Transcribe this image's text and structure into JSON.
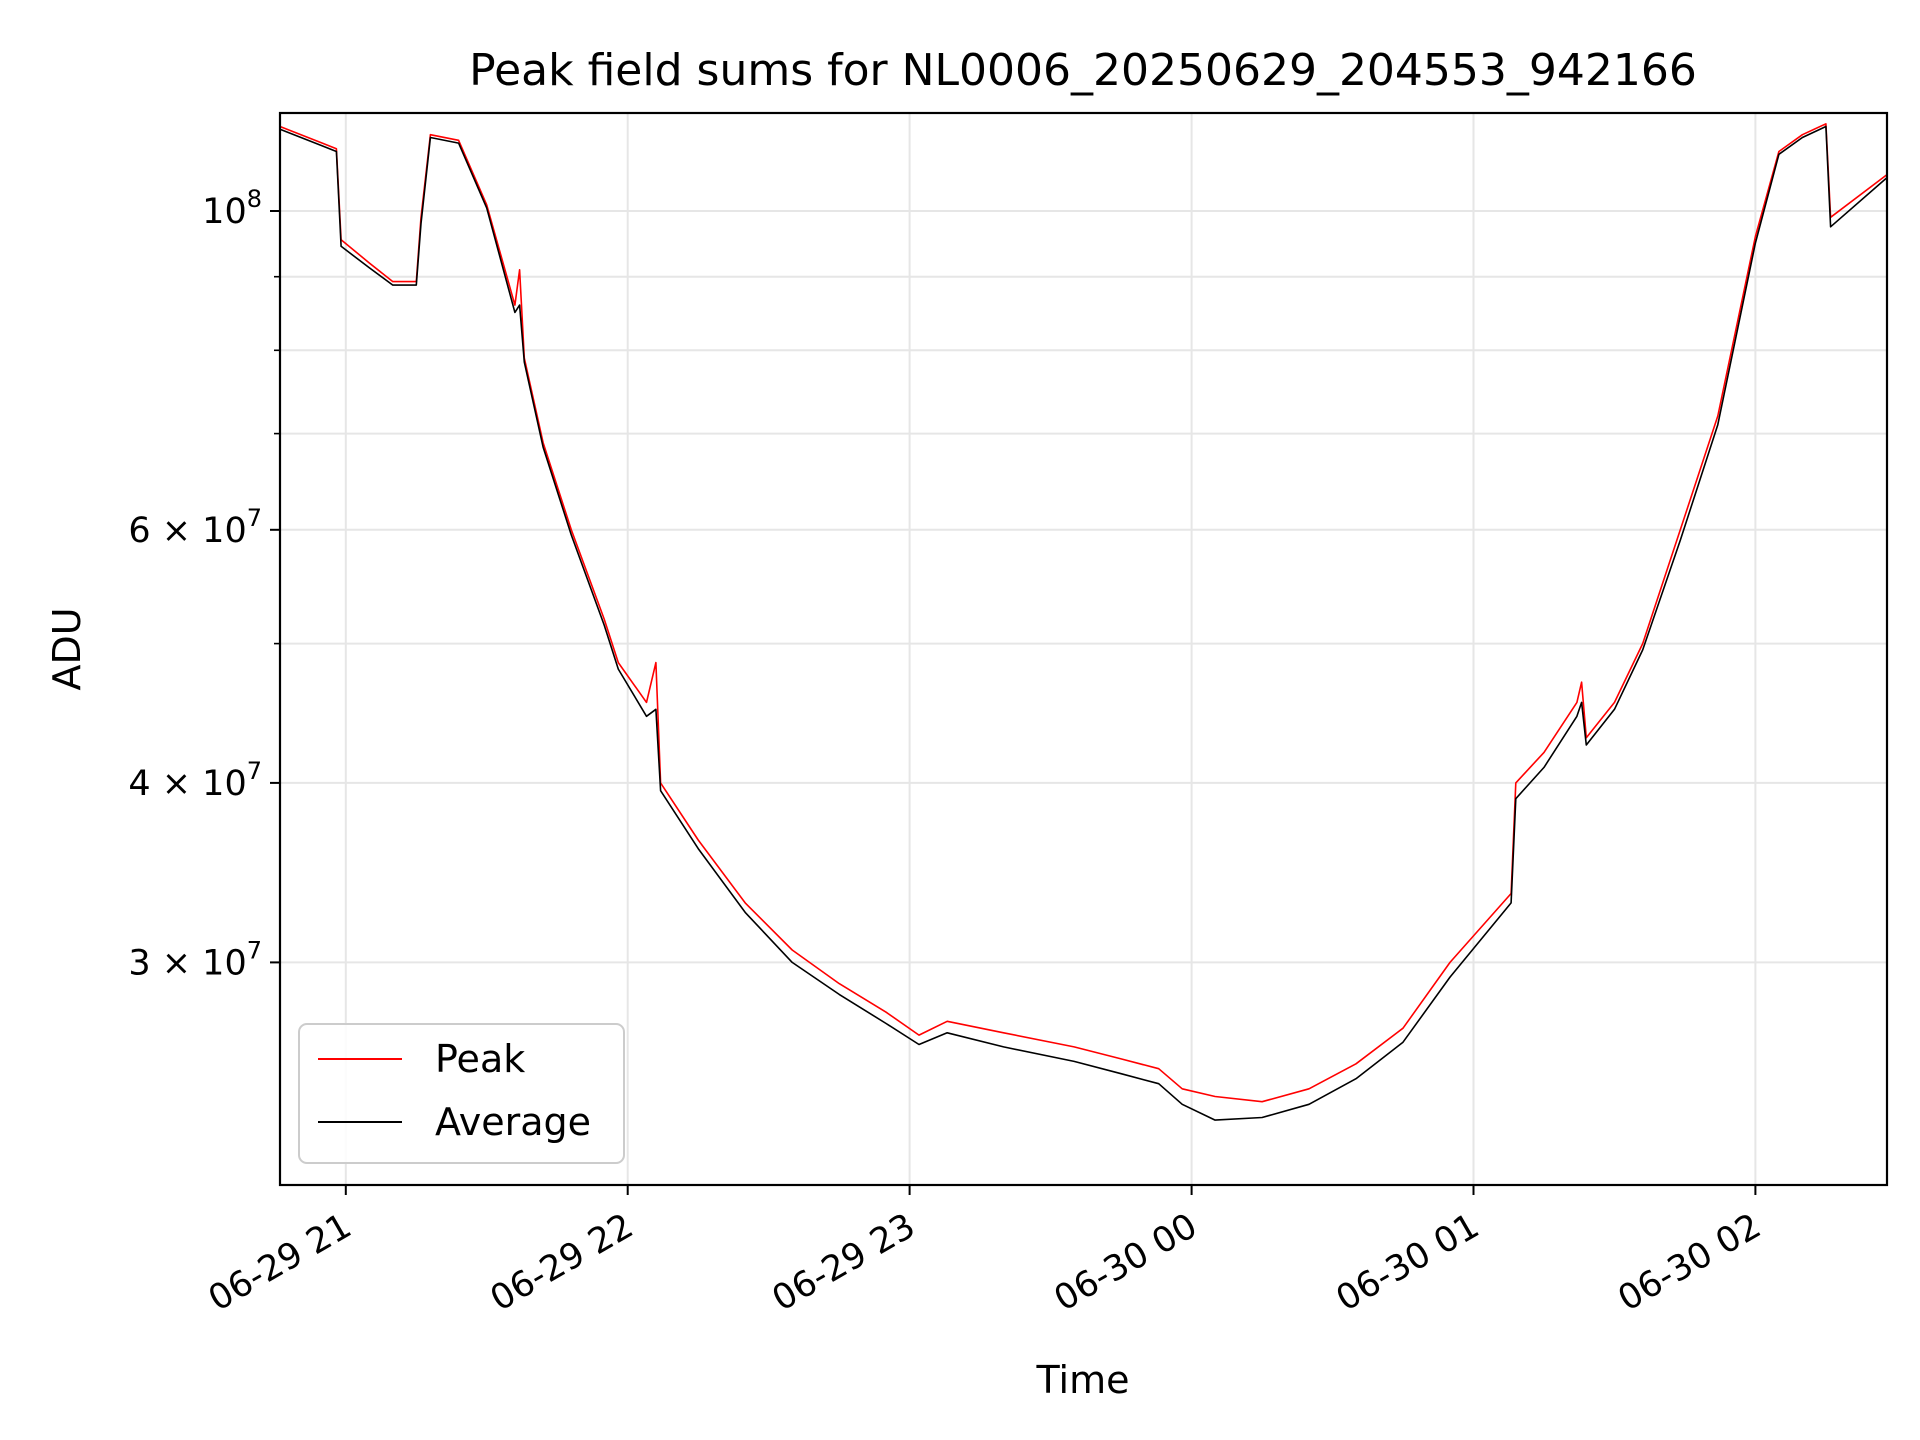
{
  "chart_data": {
    "type": "line",
    "title": "Peak field sums for NL0006_20250629_204553_942166",
    "xlabel": "Time",
    "ylabel": "ADU",
    "yscale": "log",
    "grid": true,
    "legend_position": "lower-left",
    "xlim": [
      "2025-06-29 20:46",
      "2025-06-30 02:28"
    ],
    "ylim": [
      21000000,
      117000000
    ],
    "x_ticks": [
      {
        "value": "2025-06-29 21:00",
        "label": "06-29 21"
      },
      {
        "value": "2025-06-29 22:00",
        "label": "06-29 22"
      },
      {
        "value": "2025-06-29 23:00",
        "label": "06-29 23"
      },
      {
        "value": "2025-06-30 00:00",
        "label": "06-30 00"
      },
      {
        "value": "2025-06-30 01:00",
        "label": "06-30 01"
      },
      {
        "value": "2025-06-30 02:00",
        "label": "06-30 02"
      }
    ],
    "y_ticks": [
      {
        "value": 100000000,
        "mant": "10",
        "exp": "8"
      },
      {
        "value": 60000000,
        "mant": "6 × 10",
        "exp": "7"
      },
      {
        "value": 40000000,
        "mant": "4 × 10",
        "exp": "7"
      },
      {
        "value": 30000000,
        "mant": "3 × 10",
        "exp": "7"
      }
    ],
    "y_minor_gridlines": [
      90000000,
      80000000,
      70000000,
      50000000
    ],
    "series": [
      {
        "name": "Peak",
        "color": "#ff0000",
        "points": [
          [
            "2025-06-29 20:46",
            114500000
          ],
          [
            "2025-06-29 20:55",
            111500000
          ],
          [
            "2025-06-29 20:58",
            110500000
          ],
          [
            "2025-06-29 20:59",
            95500000
          ],
          [
            "2025-06-29 21:05",
            92000000
          ],
          [
            "2025-06-29 21:10",
            89300000
          ],
          [
            "2025-06-29 21:15",
            89300000
          ],
          [
            "2025-06-29 21:16",
            99000000
          ],
          [
            "2025-06-29 21:18",
            113000000
          ],
          [
            "2025-06-29 21:24",
            112000000
          ],
          [
            "2025-06-29 21:30",
            101000000
          ],
          [
            "2025-06-29 21:36",
            86000000
          ],
          [
            "2025-06-29 21:37",
            91000000
          ],
          [
            "2025-06-29 21:38",
            79000000
          ],
          [
            "2025-06-29 21:42",
            69000000
          ],
          [
            "2025-06-29 21:48",
            60000000
          ],
          [
            "2025-06-29 21:55",
            52000000
          ],
          [
            "2025-06-29 21:58",
            48500000
          ],
          [
            "2025-06-29 22:04",
            45500000
          ],
          [
            "2025-06-29 22:06",
            48500000
          ],
          [
            "2025-06-29 22:07",
            40000000
          ],
          [
            "2025-06-29 22:15",
            36500000
          ],
          [
            "2025-06-29 22:25",
            33000000
          ],
          [
            "2025-06-29 22:35",
            30600000
          ],
          [
            "2025-06-29 22:45",
            29000000
          ],
          [
            "2025-06-29 22:55",
            27700000
          ],
          [
            "2025-06-29 23:02",
            26700000
          ],
          [
            "2025-06-29 23:08",
            27300000
          ],
          [
            "2025-06-29 23:20",
            26800000
          ],
          [
            "2025-06-29 23:35",
            26200000
          ],
          [
            "2025-06-29 23:45",
            25700000
          ],
          [
            "2025-06-29 23:53",
            25300000
          ],
          [
            "2025-06-29 23:58",
            24500000
          ],
          [
            "2025-06-30 00:05",
            24200000
          ],
          [
            "2025-06-30 00:15",
            24000000
          ],
          [
            "2025-06-30 00:25",
            24500000
          ],
          [
            "2025-06-30 00:35",
            25500000
          ],
          [
            "2025-06-30 00:45",
            27000000
          ],
          [
            "2025-06-30 00:55",
            30000000
          ],
          [
            "2025-06-30 01:08",
            33500000
          ],
          [
            "2025-06-30 01:09",
            40000000
          ],
          [
            "2025-06-30 01:15",
            42000000
          ],
          [
            "2025-06-30 01:22",
            45500000
          ],
          [
            "2025-06-30 01:23",
            47000000
          ],
          [
            "2025-06-30 01:24",
            43000000
          ],
          [
            "2025-06-30 01:30",
            45500000
          ],
          [
            "2025-06-30 01:36",
            50000000
          ],
          [
            "2025-06-30 01:44",
            60000000
          ],
          [
            "2025-06-30 01:52",
            72000000
          ],
          [
            "2025-06-30 02:00",
            96000000
          ],
          [
            "2025-06-30 02:05",
            110000000
          ],
          [
            "2025-06-30 02:10",
            113000000
          ],
          [
            "2025-06-30 02:15",
            115000000
          ],
          [
            "2025-06-30 02:16",
            99000000
          ],
          [
            "2025-06-30 02:28",
            106000000
          ]
        ]
      },
      {
        "name": "Average",
        "color": "#000000",
        "points": [
          [
            "2025-06-29 20:46",
            114000000
          ],
          [
            "2025-06-29 20:55",
            111000000
          ],
          [
            "2025-06-29 20:58",
            110000000
          ],
          [
            "2025-06-29 20:59",
            94500000
          ],
          [
            "2025-06-29 21:05",
            91300000
          ],
          [
            "2025-06-29 21:10",
            88800000
          ],
          [
            "2025-06-29 21:15",
            88800000
          ],
          [
            "2025-06-29 21:16",
            98000000
          ],
          [
            "2025-06-29 21:18",
            112500000
          ],
          [
            "2025-06-29 21:24",
            111500000
          ],
          [
            "2025-06-29 21:30",
            100500000
          ],
          [
            "2025-06-29 21:36",
            85000000
          ],
          [
            "2025-06-29 21:37",
            86000000
          ],
          [
            "2025-06-29 21:38",
            78500000
          ],
          [
            "2025-06-29 21:42",
            68500000
          ],
          [
            "2025-06-29 21:48",
            59500000
          ],
          [
            "2025-06-29 21:55",
            51500000
          ],
          [
            "2025-06-29 21:58",
            48000000
          ],
          [
            "2025-06-29 22:04",
            44500000
          ],
          [
            "2025-06-29 22:06",
            45000000
          ],
          [
            "2025-06-29 22:07",
            39500000
          ],
          [
            "2025-06-29 22:15",
            36000000
          ],
          [
            "2025-06-29 22:25",
            32500000
          ],
          [
            "2025-06-29 22:35",
            30000000
          ],
          [
            "2025-06-29 22:45",
            28500000
          ],
          [
            "2025-06-29 22:55",
            27200000
          ],
          [
            "2025-06-29 23:02",
            26300000
          ],
          [
            "2025-06-29 23:08",
            26800000
          ],
          [
            "2025-06-29 23:20",
            26200000
          ],
          [
            "2025-06-29 23:35",
            25600000
          ],
          [
            "2025-06-29 23:45",
            25100000
          ],
          [
            "2025-06-29 23:53",
            24700000
          ],
          [
            "2025-06-29 23:58",
            23900000
          ],
          [
            "2025-06-30 00:05",
            23300000
          ],
          [
            "2025-06-30 00:15",
            23400000
          ],
          [
            "2025-06-30 00:25",
            23900000
          ],
          [
            "2025-06-30 00:35",
            24900000
          ],
          [
            "2025-06-30 00:45",
            26400000
          ],
          [
            "2025-06-30 00:55",
            29300000
          ],
          [
            "2025-06-30 01:08",
            33000000
          ],
          [
            "2025-06-30 01:09",
            39000000
          ],
          [
            "2025-06-30 01:15",
            41000000
          ],
          [
            "2025-06-30 01:22",
            44500000
          ],
          [
            "2025-06-30 01:23",
            45500000
          ],
          [
            "2025-06-30 01:24",
            42500000
          ],
          [
            "2025-06-30 01:30",
            45000000
          ],
          [
            "2025-06-30 01:36",
            49500000
          ],
          [
            "2025-06-30 01:44",
            59000000
          ],
          [
            "2025-06-30 01:52",
            71000000
          ],
          [
            "2025-06-30 02:00",
            95000000
          ],
          [
            "2025-06-30 02:05",
            109500000
          ],
          [
            "2025-06-30 02:10",
            112500000
          ],
          [
            "2025-06-30 02:15",
            114500000
          ],
          [
            "2025-06-30 02:16",
            97500000
          ],
          [
            "2025-06-30 02:28",
            105500000
          ]
        ]
      }
    ]
  }
}
